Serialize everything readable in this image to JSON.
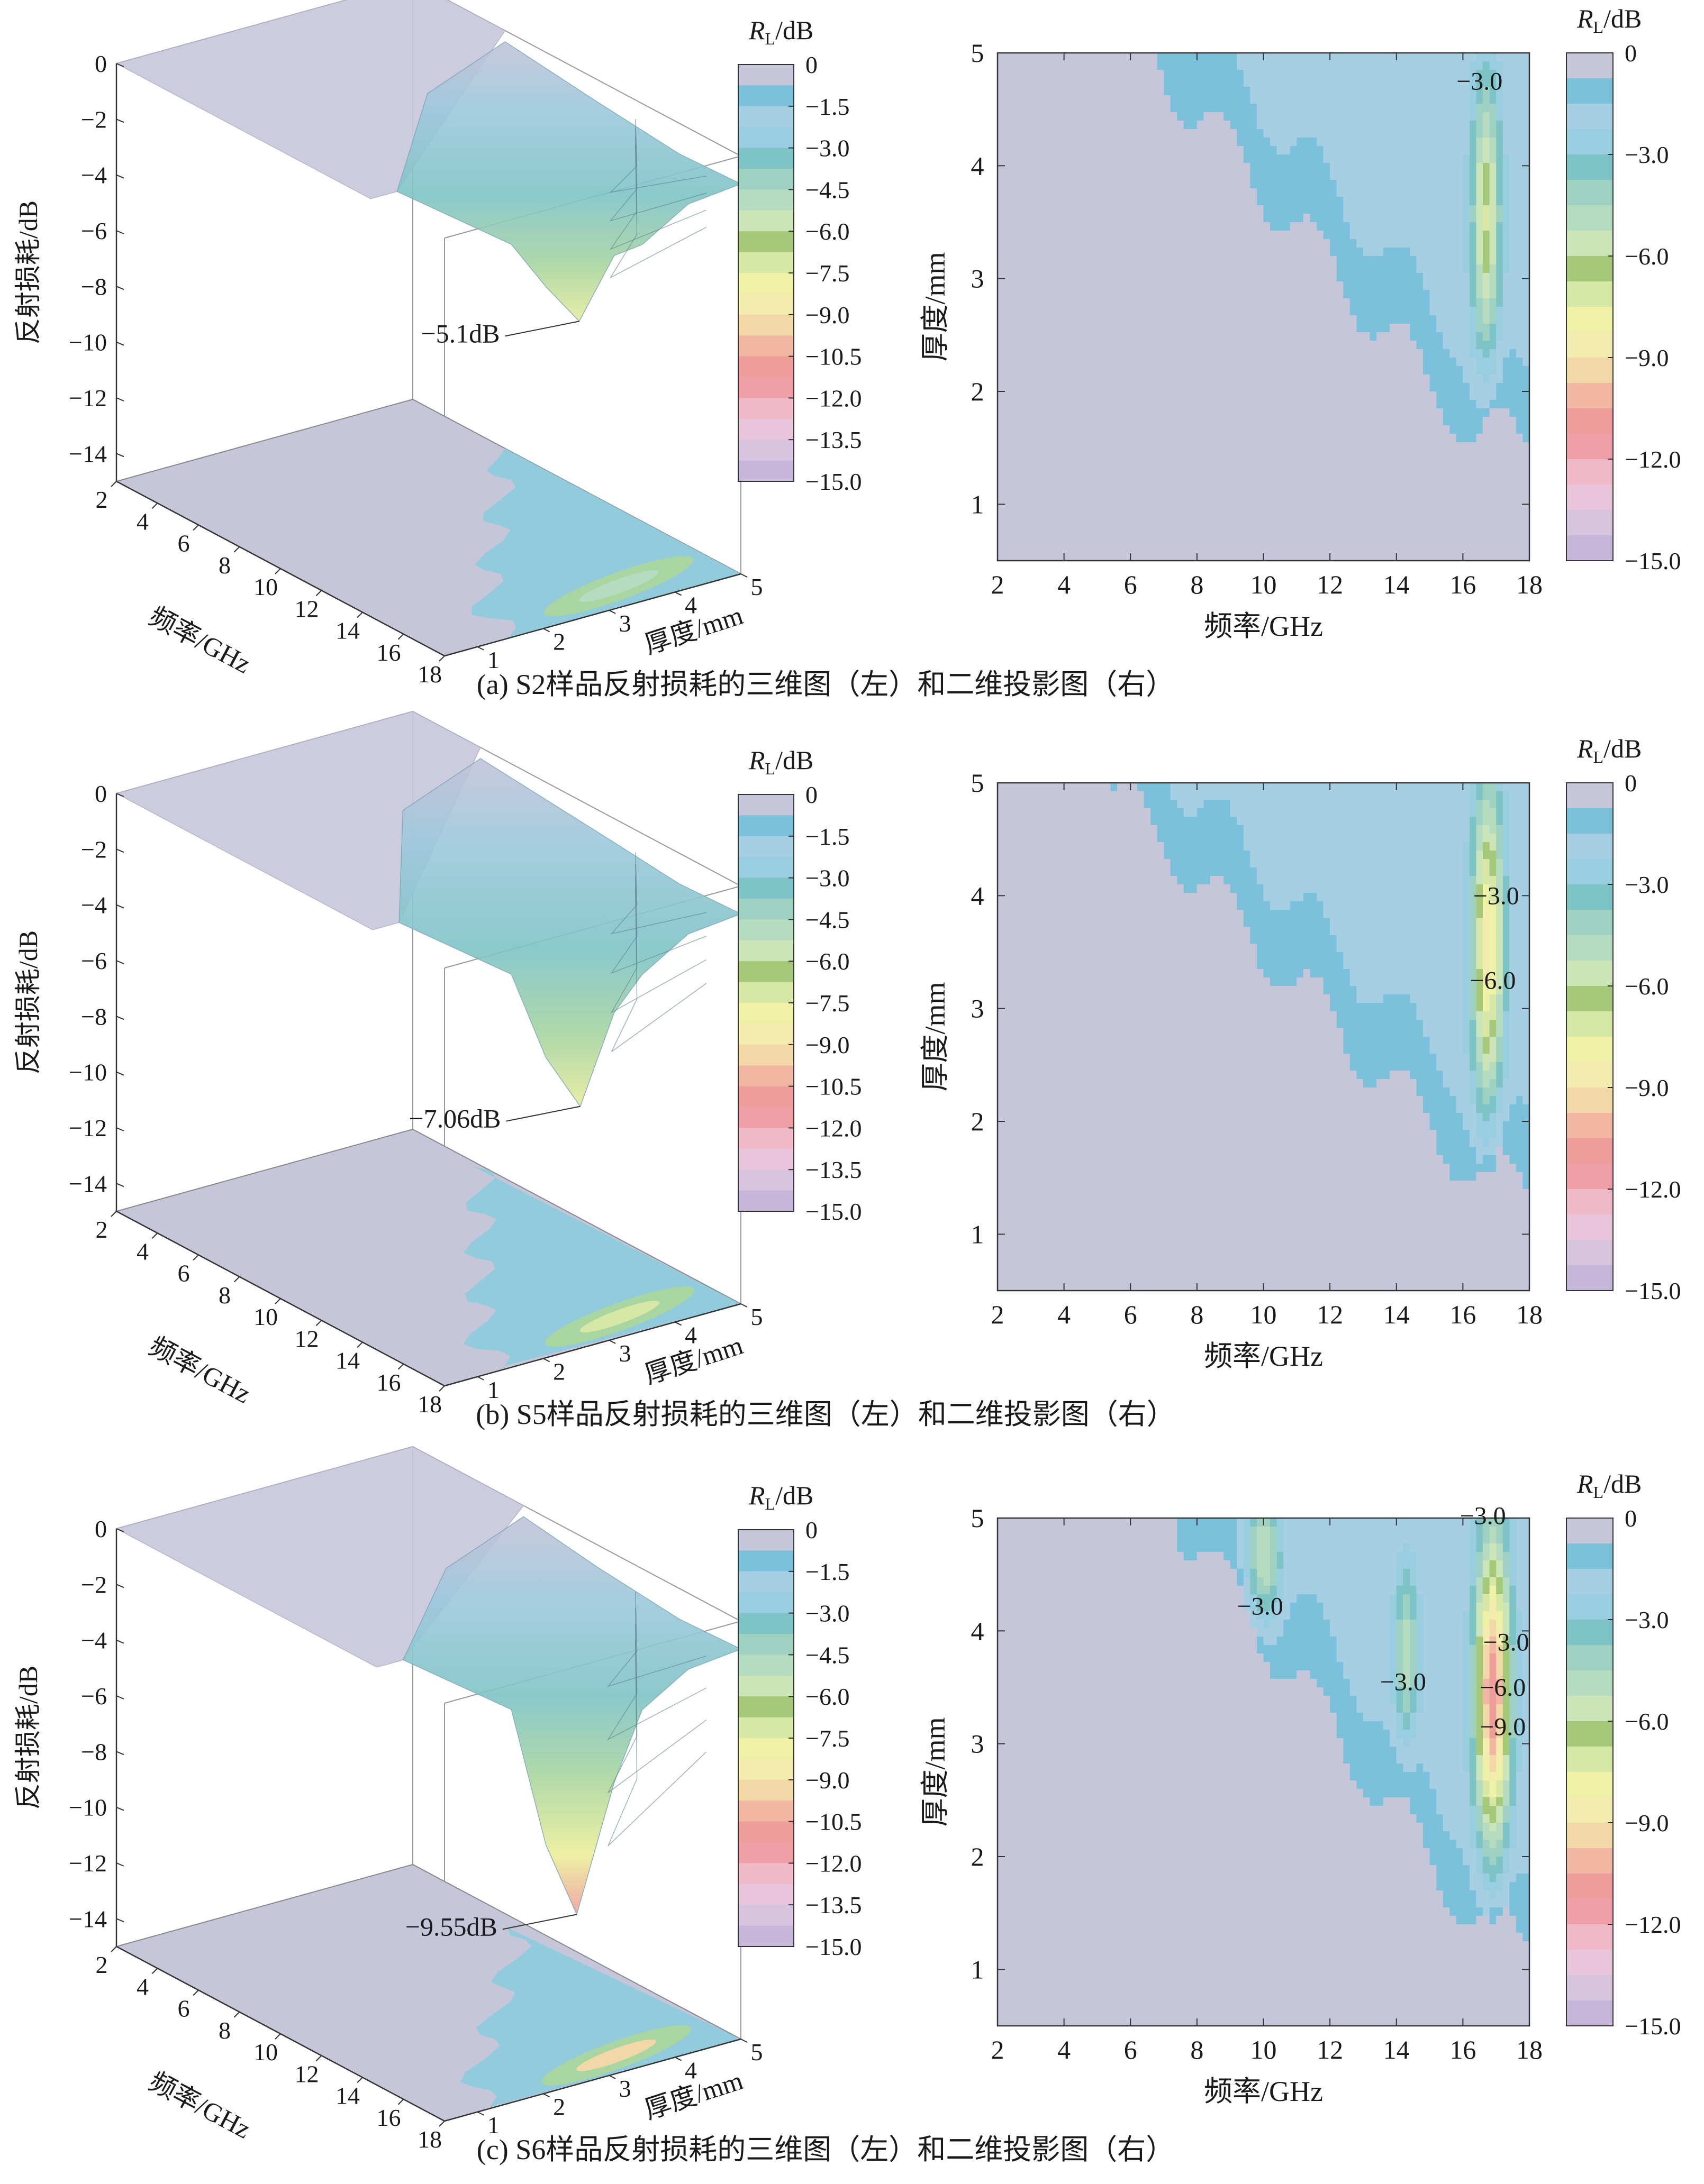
{
  "chart_data": [
    {
      "panel": "a",
      "caption": "(a) S2样品反射损耗的三维图（左）和二维投影图（右）",
      "type": "surface3d+contour",
      "x": {
        "label": "频率/GHz",
        "range": [
          2,
          18
        ],
        "ticks": [
          "2",
          "4",
          "6",
          "8",
          "10",
          "12",
          "14",
          "16",
          "18"
        ]
      },
      "y": {
        "label": "厚度/mm",
        "range": [
          0.5,
          5
        ],
        "ticks": [
          "1",
          "2",
          "3",
          "4",
          "5"
        ]
      },
      "z": {
        "label": "反射损耗/dB",
        "range": [
          -15,
          0
        ],
        "ticks": [
          "0",
          "-2",
          "-4",
          "-6",
          "-8",
          "-10",
          "-12",
          "-14"
        ]
      },
      "colorbar3d": {
        "title": "/dB",
        "title_r": "R",
        "title_sub": "L",
        "ticks": [
          "0",
          "-1.5",
          "-3.0",
          "-4.5",
          "-6.0",
          "-7.5",
          "-9.0",
          "-10.5",
          "-12.0",
          "-13.5",
          "-15.0"
        ]
      },
      "colorbar2d": {
        "title": "/dB",
        "title_r": "R",
        "title_sub": "L",
        "ticks": [
          "0",
          "-3.0",
          "-6.0",
          "-9.0",
          "-12.0",
          "-15.0"
        ]
      },
      "min_label": "−5.1dB",
      "min_value": -5.1,
      "peak": {
        "f": 16.7,
        "d": 3.55,
        "wf": 0.42,
        "wd": 1.2
      },
      "onset": {
        "f": 6.5,
        "thickness_at_onset": 5.0,
        "f_end": 16.4,
        "thickness_at_end": 1.6
      },
      "contour_labels": [
        {
          "text": "−3.0",
          "f": 16.5,
          "d": 4.75
        }
      ]
    },
    {
      "panel": "b",
      "caption": "(b) S5样品反射损耗的三维图（左）和二维投影图（右）",
      "type": "surface3d+contour",
      "x": {
        "label": "频率/GHz",
        "range": [
          2,
          18
        ],
        "ticks": [
          "2",
          "4",
          "6",
          "8",
          "10",
          "12",
          "14",
          "16",
          "18"
        ]
      },
      "y": {
        "label": "厚度/mm",
        "range": [
          0.5,
          5
        ],
        "ticks": [
          "1",
          "2",
          "3",
          "4",
          "5"
        ]
      },
      "z": {
        "label": "反射损耗/dB",
        "range": [
          -15,
          0
        ],
        "ticks": [
          "0",
          "-2",
          "-4",
          "-6",
          "-8",
          "-10",
          "-12",
          "-14"
        ]
      },
      "colorbar3d": {
        "title": "/dB",
        "title_r": "R",
        "title_sub": "L",
        "ticks": [
          "0",
          "-1.5",
          "-3.0",
          "-4.5",
          "-6.0",
          "-7.5",
          "-9.0",
          "-10.5",
          "-12.0",
          "-13.5",
          "-15.0"
        ]
      },
      "colorbar2d": {
        "title": "/dB",
        "title_r": "R",
        "title_sub": "L",
        "ticks": [
          "0",
          "-3.0",
          "-6.0",
          "-9.0",
          "-12.0",
          "-15.0"
        ]
      },
      "min_label": "−7.06dB",
      "min_value": -7.06,
      "peak": {
        "f": 16.75,
        "d": 3.55,
        "wf": 0.45,
        "wd": 1.35
      },
      "onset": {
        "f": 5.3,
        "thickness_at_onset": 5.0,
        "f_end": 16.5,
        "thickness_at_end": 1.5
      },
      "contour_labels": [
        {
          "text": "−3.0",
          "f": 17.0,
          "d": 4.0
        },
        {
          "text": "−6.0",
          "f": 16.9,
          "d": 3.25
        }
      ]
    },
    {
      "panel": "c",
      "caption": "(c) S6样品反射损耗的三维图（左）和二维投影图（右）",
      "type": "surface3d+contour",
      "x": {
        "label": "频率/GHz",
        "range": [
          2,
          18
        ],
        "ticks": [
          "2",
          "4",
          "6",
          "8",
          "10",
          "12",
          "14",
          "16",
          "18"
        ]
      },
      "y": {
        "label": "厚度/mm",
        "range": [
          0.5,
          5
        ],
        "ticks": [
          "1",
          "2",
          "3",
          "4",
          "5"
        ]
      },
      "z": {
        "label": "反射损耗/dB",
        "range": [
          -15,
          0
        ],
        "ticks": [
          "0",
          "-2",
          "-4",
          "-6",
          "-8",
          "-10",
          "-12",
          "-14"
        ]
      },
      "colorbar3d": {
        "title": "/dB",
        "title_r": "R",
        "title_sub": "L",
        "ticks": [
          "0",
          "-1.5",
          "-3.0",
          "-4.5",
          "-6.0",
          "-7.5",
          "-9.0",
          "-10.5",
          "-12.0",
          "-13.5",
          "-15.0"
        ]
      },
      "colorbar2d": {
        "title": "/dB",
        "title_r": "R",
        "title_sub": "L",
        "ticks": [
          "0",
          "-3.0",
          "-6.0",
          "-9.0",
          "-12.0",
          "-15.0"
        ]
      },
      "min_label": "−9.55dB",
      "min_value": -9.55,
      "peak": {
        "f": 16.9,
        "d": 3.45,
        "wf": 0.5,
        "wd": 1.3
      },
      "extra_peaks": [
        {
          "f": 10.0,
          "d": 4.65,
          "wf": 0.5,
          "wd": 0.55,
          "depth": -3.6
        },
        {
          "f": 14.3,
          "d": 3.8,
          "wf": 0.35,
          "wd": 0.75,
          "depth": -3.3
        }
      ],
      "onset": {
        "f": 7.4,
        "thickness_at_onset": 5.0,
        "f_end": 16.7,
        "thickness_at_end": 1.3
      },
      "contour_labels": [
        {
          "text": "−3.0",
          "f": 16.6,
          "d": 5.02
        },
        {
          "text": "−3.0",
          "f": 9.9,
          "d": 4.22
        },
        {
          "text": "−3.0",
          "f": 14.2,
          "d": 3.55
        },
        {
          "text": "−3.0",
          "f": 17.3,
          "d": 3.9
        },
        {
          "text": "−6.0",
          "f": 17.2,
          "d": 3.5
        },
        {
          "text": "−9.0",
          "f": 17.2,
          "d": 3.15
        }
      ]
    }
  ]
}
